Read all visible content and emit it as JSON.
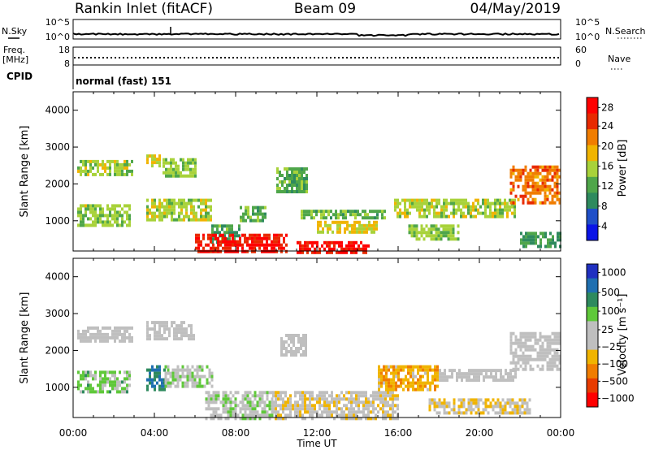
{
  "header": {
    "station": "Rankin Inlet (fitACF)",
    "beam": "Beam 09",
    "date": "04/May/2019"
  },
  "top_panels": {
    "nsky_label": "N.Sky",
    "nsky_ticks": [
      "10^5",
      "10^0"
    ],
    "nsearch_label": "N.Search",
    "nsearch_ticks": [
      "10^5",
      "10^0"
    ],
    "freq_label": "Freq.",
    "freq_unit": "[MHz]",
    "freq_ticks": [
      "18",
      "8"
    ],
    "nave_label": "Nave",
    "nave_ticks": [
      "60",
      "0"
    ],
    "cpid_label": "CPID",
    "cpid_text": "normal (fast) 151"
  },
  "colors": {
    "power": [
      "#0a14e6",
      "#1f4fc8",
      "#2e8a5e",
      "#4fa64a",
      "#a8d23a",
      "#f0b400",
      "#f07d00",
      "#e82a00",
      "#ff0000"
    ],
    "velocity": [
      "#ff0000",
      "#e83c00",
      "#f07d00",
      "#f0b400",
      "#bfbfbf",
      "#bfbfbf",
      "#5fc83a",
      "#2e8a5e",
      "#1f6fb0",
      "#2030c0"
    ]
  },
  "chart_data": [
    {
      "type": "heatmap",
      "name": "power",
      "ylabel": "Slant Range [km]",
      "yticks": [
        "1000",
        "2000",
        "3000",
        "4000"
      ],
      "ylim": [
        180,
        4500
      ],
      "xlim": [
        0,
        24
      ],
      "colorbar_label": "Power [dB]",
      "colorbar_ticks": [
        "28",
        "24",
        "20",
        "16",
        "12",
        "8",
        "4"
      ],
      "colorbar_range": [
        0,
        30
      ],
      "regions": [
        {
          "t0": 0.2,
          "t1": 2.9,
          "r0": 2250,
          "r1": 2650,
          "value": 15
        },
        {
          "t0": 3.6,
          "t1": 4.3,
          "r0": 2500,
          "r1": 2800,
          "value": 16
        },
        {
          "t0": 4.4,
          "t1": 6.0,
          "r0": 2250,
          "r1": 2700,
          "value": 14
        },
        {
          "t0": 0.2,
          "t1": 2.8,
          "r0": 900,
          "r1": 1450,
          "value": 14
        },
        {
          "t0": 3.6,
          "t1": 6.8,
          "r0": 1000,
          "r1": 1600,
          "value": 15
        },
        {
          "t0": 6.8,
          "t1": 8.2,
          "r0": 400,
          "r1": 900,
          "value": 11
        },
        {
          "t0": 8.2,
          "t1": 9.5,
          "r0": 1000,
          "r1": 1400,
          "value": 12
        },
        {
          "t0": 10.0,
          "t1": 11.5,
          "r0": 1800,
          "r1": 2450,
          "value": 12
        },
        {
          "t0": 6.0,
          "t1": 10.5,
          "r0": 180,
          "r1": 650,
          "value": 27
        },
        {
          "t0": 11.0,
          "t1": 14.5,
          "r0": 180,
          "r1": 450,
          "value": 27
        },
        {
          "t0": 12.0,
          "t1": 15.0,
          "r0": 650,
          "r1": 1000,
          "value": 17
        },
        {
          "t0": 11.2,
          "t1": 15.3,
          "r0": 1050,
          "r1": 1300,
          "value": 12
        },
        {
          "t0": 15.8,
          "t1": 21.8,
          "r0": 1100,
          "r1": 1600,
          "value": 15
        },
        {
          "t0": 16.5,
          "t1": 19.0,
          "r0": 500,
          "r1": 900,
          "value": 14
        },
        {
          "t0": 21.5,
          "t1": 24.0,
          "r0": 1500,
          "r1": 2500,
          "value": 22
        },
        {
          "t0": 22.0,
          "t1": 24.0,
          "r0": 300,
          "r1": 700,
          "value": 10
        }
      ]
    },
    {
      "type": "heatmap",
      "name": "velocity",
      "ylabel": "Slant Range [km]",
      "yticks": [
        "1000",
        "2000",
        "3000",
        "4000"
      ],
      "ylim": [
        180,
        4500
      ],
      "xlim": [
        0,
        24
      ],
      "xticks": [
        "00:00",
        "04:00",
        "08:00",
        "12:00",
        "16:00",
        "20:00",
        "00:00"
      ],
      "xlabel": "Time UT",
      "colorbar_label": "Velocity [m s⁻¹]",
      "colorbar_ticks": [
        "1000",
        "500",
        "100",
        "25",
        "−25",
        "−100",
        "−500",
        "−1000"
      ],
      "colorbar_range": [
        -1200,
        1200
      ],
      "regions": [
        {
          "t0": 0.2,
          "t1": 2.9,
          "r0": 2250,
          "r1": 2650,
          "value": 0
        },
        {
          "t0": 3.6,
          "t1": 6.0,
          "r0": 2300,
          "r1": 2800,
          "value": 0
        },
        {
          "t0": 0.2,
          "t1": 2.8,
          "r0": 900,
          "r1": 1450,
          "value": 300
        },
        {
          "t0": 3.6,
          "t1": 4.5,
          "r0": 900,
          "r1": 1600,
          "value": 700
        },
        {
          "t0": 4.5,
          "t1": 6.8,
          "r0": 1000,
          "r1": 1600,
          "value": 150
        },
        {
          "t0": 6.5,
          "t1": 9.8,
          "r0": 180,
          "r1": 900,
          "value": 150
        },
        {
          "t0": 9.8,
          "t1": 16.0,
          "r0": 180,
          "r1": 900,
          "value": -150
        },
        {
          "t0": 10.2,
          "t1": 11.5,
          "r0": 1900,
          "r1": 2450,
          "value": 0
        },
        {
          "t0": 15.0,
          "t1": 18.0,
          "r0": 900,
          "r1": 1600,
          "value": -400
        },
        {
          "t0": 18.0,
          "t1": 21.8,
          "r0": 1200,
          "r1": 1500,
          "value": 0
        },
        {
          "t0": 17.5,
          "t1": 22.5,
          "r0": 300,
          "r1": 700,
          "value": -150
        },
        {
          "t0": 21.5,
          "t1": 24.0,
          "r0": 1500,
          "r1": 2500,
          "value": 0
        }
      ]
    }
  ]
}
